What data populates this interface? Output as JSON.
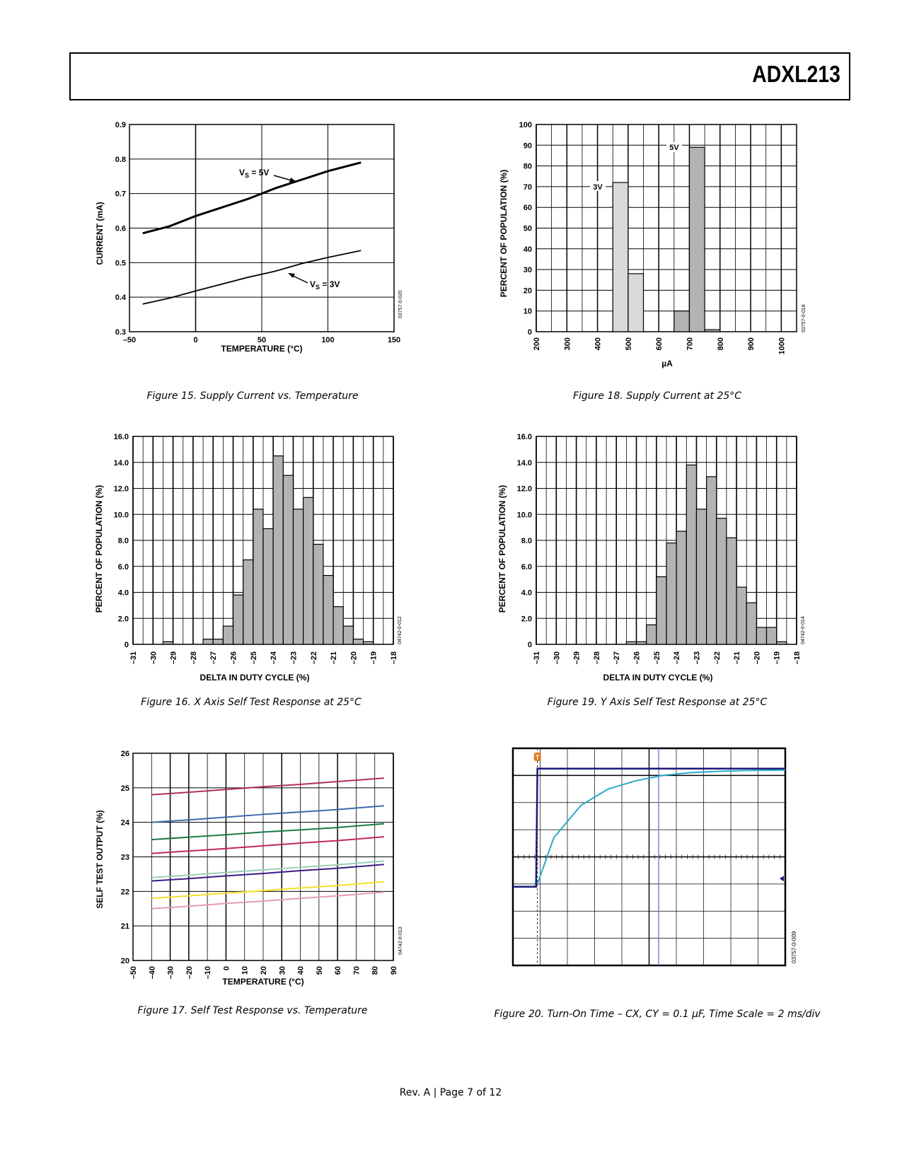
{
  "header": {
    "part_number": "ADXL213"
  },
  "footer": {
    "page_text": "Rev. A | Page 7 of 12"
  },
  "figures": [
    {
      "caption": "Figure 15. Supply Current vs. Temperature",
      "side_code": "03757-0-020",
      "chart_data": {
        "type": "line",
        "title": "",
        "xlabel": "TEMPERATURE (°C)",
        "ylabel": "CURRENT (mA)",
        "xlim": [
          -50,
          150
        ],
        "ylim": [
          0.3,
          0.9
        ],
        "xticks": [
          -50,
          0,
          50,
          100,
          150
        ],
        "yticks": [
          0.3,
          0.4,
          0.5,
          0.6,
          0.7,
          0.8,
          0.9
        ],
        "xtick_labels": [
          "–50",
          "0",
          "50",
          "100",
          "150"
        ],
        "ytick_labels": [
          "0.3",
          "0.4",
          "0.5",
          "0.6",
          "0.7",
          "0.8",
          "0.9"
        ],
        "grid": true,
        "series": [
          {
            "name": "VS = 5V",
            "x": [
              -40,
              -20,
              0,
              20,
              40,
              60,
              80,
              100,
              125
            ],
            "y": [
              0.585,
              0.605,
              0.635,
              0.66,
              0.685,
              0.715,
              0.74,
              0.765,
              0.79
            ]
          },
          {
            "name": "VS = 3V",
            "x": [
              -40,
              -20,
              0,
              20,
              40,
              60,
              80,
              100,
              125
            ],
            "y": [
              0.38,
              0.397,
              0.418,
              0.438,
              0.458,
              0.475,
              0.497,
              0.515,
              0.535
            ]
          }
        ],
        "annotations": [
          {
            "text_main": "V",
            "text_sub": "S",
            "text_rest": " = 5V"
          },
          {
            "text_main": "V",
            "text_sub": "S",
            "text_rest": " = 3V"
          }
        ]
      }
    },
    {
      "caption": "Figure 16. X Axis Self Test Response at 25°C",
      "side_code": "04742-0-012",
      "chart_data": {
        "type": "bar",
        "title": "",
        "xlabel": "DELTA IN DUTY CYCLE (%)",
        "ylabel": "PERCENT OF POPULATION (%)",
        "ylim": [
          0,
          16
        ],
        "yticks": [
          0,
          2,
          4,
          6,
          8,
          10,
          12,
          14,
          16
        ],
        "ytick_labels": [
          "0",
          "2.0",
          "4.0",
          "6.0",
          "8.0",
          "10.0",
          "12.0",
          "14.0",
          "16.0"
        ],
        "xlim": [
          -31,
          -18
        ],
        "xticks": [
          -31,
          -30,
          -29,
          -28,
          -27,
          -26,
          -25,
          -24,
          -23,
          -22,
          -21,
          -20,
          -19,
          -18
        ],
        "xtick_labels": [
          "–31",
          "–30",
          "–29",
          "–28",
          "–27",
          "–26",
          "–25",
          "–24",
          "–23",
          "–22",
          "–21",
          "–20",
          "–19",
          "–18"
        ],
        "bin_width": 0.5,
        "bin_starts": [
          -31,
          -30.5,
          -30,
          -29.5,
          -29,
          -28.5,
          -28,
          -27.5,
          -27,
          -26.5,
          -26,
          -25.5,
          -25,
          -24.5,
          -24,
          -23.5,
          -23,
          -22.5,
          -22,
          -21.5,
          -21,
          -20.5,
          -20,
          -19.5,
          -19,
          -18.5
        ],
        "values": [
          0,
          0,
          0,
          0.2,
          0,
          0,
          0,
          0.4,
          0.4,
          1.4,
          3.8,
          6.5,
          10.4,
          8.9,
          14.5,
          13.0,
          10.4,
          11.3,
          7.7,
          5.3,
          2.9,
          1.4,
          0.4,
          0.2,
          0,
          0
        ],
        "bar_color": "#b3b3b3"
      }
    },
    {
      "caption": "Figure 17. Self Test Response vs. Temperature",
      "side_code": "04742-0-013",
      "chart_data": {
        "type": "line",
        "title": "",
        "xlabel": "TEMPERATURE (°C)",
        "ylabel": "SELF TEST OUTPUT (%)",
        "xlim": [
          -50,
          90
        ],
        "ylim": [
          20,
          26
        ],
        "xticks": [
          -50,
          -40,
          -30,
          -20,
          -10,
          0,
          10,
          20,
          30,
          40,
          50,
          60,
          70,
          80,
          90
        ],
        "xtick_labels": [
          "–50",
          "–40",
          "–30",
          "–20",
          "–10",
          "0",
          "10",
          "20",
          "30",
          "40",
          "50",
          "60",
          "70",
          "80",
          "90"
        ],
        "yticks": [
          20,
          21,
          22,
          23,
          24,
          25,
          26
        ],
        "ytick_labels": [
          "20",
          "21",
          "22",
          "23",
          "24",
          "25",
          "26"
        ],
        "grid": true,
        "series": [
          {
            "color": "#b0305a",
            "x": [
              -40,
              -20,
              0,
              20,
              40,
              60,
              85
            ],
            "y": [
              24.8,
              24.87,
              24.95,
              25.03,
              25.1,
              25.18,
              25.28
            ]
          },
          {
            "color": "#3b6aaa",
            "x": [
              -40,
              -20,
              0,
              20,
              40,
              60,
              85
            ],
            "y": [
              24.0,
              24.07,
              24.15,
              24.23,
              24.3,
              24.37,
              24.48
            ]
          },
          {
            "color": "#1a7a44",
            "x": [
              -40,
              -20,
              0,
              20,
              40,
              60,
              85
            ],
            "y": [
              23.5,
              23.57,
              23.64,
              23.72,
              23.78,
              23.85,
              23.96
            ]
          },
          {
            "color": "#c0275b",
            "x": [
              -40,
              -20,
              0,
              20,
              40,
              60,
              85
            ],
            "y": [
              23.1,
              23.17,
              23.24,
              23.32,
              23.4,
              23.47,
              23.58
            ]
          },
          {
            "color": "#9ccfb5",
            "x": [
              -40,
              -20,
              0,
              20,
              40,
              60,
              85
            ],
            "y": [
              22.4,
              22.47,
              22.55,
              22.62,
              22.7,
              22.77,
              22.88
            ]
          },
          {
            "color": "#3b1a8a",
            "x": [
              -40,
              -20,
              0,
              20,
              40,
              60,
              85
            ],
            "y": [
              22.3,
              22.37,
              22.45,
              22.52,
              22.6,
              22.67,
              22.78
            ]
          },
          {
            "color": "#f2e02a",
            "x": [
              -40,
              -20,
              0,
              20,
              40,
              60,
              85
            ],
            "y": [
              21.8,
              21.87,
              21.95,
              22.02,
              22.1,
              22.17,
              22.28
            ]
          },
          {
            "color": "#e39ab8",
            "x": [
              -40,
              -20,
              0,
              20,
              40,
              60,
              85
            ],
            "y": [
              21.5,
              21.57,
              21.65,
              21.72,
              21.8,
              21.87,
              21.98
            ]
          }
        ]
      }
    },
    {
      "caption": "Figure 18. Supply Current at 25°C",
      "side_code": "03757-0-018",
      "chart_data": {
        "type": "bar",
        "title": "",
        "xlabel": "µA",
        "ylabel": "PERCENT OF POPULATION (%)",
        "ylim": [
          0,
          100
        ],
        "yticks": [
          0,
          10,
          20,
          30,
          40,
          50,
          60,
          70,
          80,
          90,
          100
        ],
        "ytick_labels": [
          "0",
          "10",
          "20",
          "30",
          "40",
          "50",
          "60",
          "70",
          "80",
          "90",
          "100"
        ],
        "xlim": [
          200,
          1050
        ],
        "xticks": [
          200,
          300,
          400,
          500,
          600,
          700,
          800,
          900,
          1000
        ],
        "xtick_labels": [
          "200",
          "300",
          "400",
          "500",
          "600",
          "700",
          "800",
          "900",
          "1000"
        ],
        "bin_width": 50,
        "series": [
          {
            "name": "3V",
            "color": "#d9d9d9",
            "bin_starts": [
              450,
              500
            ],
            "values": [
              72,
              28
            ]
          },
          {
            "name": "5V",
            "color": "#b3b3b3",
            "bin_starts": [
              650,
              700,
              750
            ],
            "values": [
              10,
              89,
              1
            ]
          }
        ]
      }
    },
    {
      "caption": "Figure 19. Y Axis Self Test Response at 25°C",
      "side_code": "04742-0-014",
      "chart_data": {
        "type": "bar",
        "title": "",
        "xlabel": "DELTA IN DUTY CYCLE (%)",
        "ylabel": "PERCENT OF POPULATION (%)",
        "ylim": [
          0,
          16
        ],
        "yticks": [
          0,
          2,
          4,
          6,
          8,
          10,
          12,
          14,
          16
        ],
        "ytick_labels": [
          "0",
          "2.0",
          "4.0",
          "6.0",
          "8.0",
          "10.0",
          "12.0",
          "14.0",
          "16.0"
        ],
        "xlim": [
          -31,
          -18
        ],
        "xticks": [
          -31,
          -30,
          -29,
          -28,
          -27,
          -26,
          -25,
          -24,
          -23,
          -22,
          -21,
          -20,
          -19,
          -18
        ],
        "xtick_labels": [
          "–31",
          "–30",
          "–29",
          "–28",
          "–27",
          "–26",
          "–25",
          "–24",
          "–23",
          "–22",
          "–21",
          "–20",
          "–19",
          "–18"
        ],
        "bin_width": 0.5,
        "bin_starts": [
          -31,
          -30.5,
          -30,
          -29.5,
          -29,
          -28.5,
          -28,
          -27.5,
          -27,
          -26.5,
          -26,
          -25.5,
          -25,
          -24.5,
          -24,
          -23.5,
          -23,
          -22.5,
          -22,
          -21.5,
          -21,
          -20.5,
          -20,
          -19.5,
          -19,
          -18.5
        ],
        "values": [
          0,
          0,
          0,
          0,
          0,
          0,
          0,
          0,
          0,
          0.2,
          0.2,
          1.5,
          5.2,
          7.8,
          8.7,
          13.8,
          10.4,
          12.9,
          9.7,
          8.2,
          4.4,
          3.2,
          1.3,
          1.3,
          0.2,
          0
        ],
        "bar_color": "#b3b3b3"
      }
    },
    {
      "caption": "Figure 20. Turn-On Time – CX, CY = 0.1 µF, Time Scale = 2 ms/div",
      "side_code": "03757-0-009",
      "chart_data": {
        "type": "line",
        "title": "",
        "xlabel": "",
        "ylabel": "",
        "grid": true,
        "x_divisions": 10,
        "y_divisions": 8,
        "trigger_marker": "T",
        "series": [
          {
            "name": "",
            "color": "#1a1a7a",
            "x_div": [
              0,
              0.85,
              0.9,
              10
            ],
            "y_div": [
              5.1,
              5.1,
              0.75,
              0.75
            ]
          },
          {
            "name": "",
            "color": "#2aa9c9",
            "x_div": [
              0.9,
              1.5,
              2.5,
              3.5,
              4.5,
              5.5,
              6.5,
              7.5,
              8.5,
              10
            ],
            "y_div": [
              5.0,
              3.3,
              2.1,
              1.5,
              1.2,
              1.0,
              0.9,
              0.85,
              0.82,
              0.8
            ]
          }
        ]
      }
    }
  ]
}
